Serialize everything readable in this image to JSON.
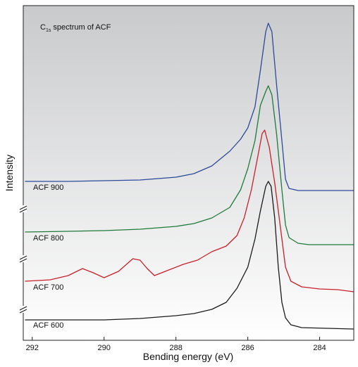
{
  "chart_data": {
    "type": "line",
    "title": {
      "base": "C",
      "subscript": "1s",
      "rest": " spectrum of ACF"
    },
    "x_label": "Bending energy (eV)",
    "y_label": "Intensity",
    "xlim": [
      292.25,
      283.05
    ],
    "xticks": [
      292,
      290,
      288,
      286,
      284
    ],
    "ylim": [
      0,
      476
    ],
    "series": [
      {
        "name": "ACF 900",
        "color": "#2c4a9a",
        "x": [
          292.2,
          291,
          290,
          289,
          288,
          287.5,
          287,
          286.5,
          286.2,
          286,
          285.8,
          285.65,
          285.5,
          285.43,
          285.33,
          285.2,
          285.05,
          284.95,
          284.85,
          284.6,
          283.05
        ],
        "values": [
          226,
          226,
          227,
          228,
          232,
          237,
          248,
          269,
          286,
          302,
          332,
          384,
          439,
          451,
          439,
          364,
          284,
          229,
          216,
          213,
          213
        ]
      },
      {
        "name": "ACF 800",
        "color": "#1f7a3a",
        "x": [
          292.2,
          291,
          290,
          289,
          288,
          287.5,
          287,
          286.5,
          286.2,
          286,
          285.8,
          285.65,
          285.5,
          285.43,
          285.33,
          285.2,
          285.05,
          284.95,
          284.85,
          284.6,
          284.3,
          283.05
        ],
        "values": [
          154,
          155,
          156,
          158,
          162,
          166,
          174,
          189,
          214,
          244,
          284,
          334,
          354,
          362,
          349,
          294,
          214,
          164,
          146,
          138,
          136,
          136
        ]
      },
      {
        "name": "ACF 700",
        "color": "#c8202a",
        "x": [
          292.2,
          291.5,
          291,
          290.6,
          290.3,
          290,
          289.6,
          289.2,
          289,
          288.8,
          288.6,
          288.2,
          287.8,
          287.4,
          287,
          286.6,
          286.3,
          286.1,
          285.9,
          285.75,
          285.6,
          285.53,
          285.4,
          285.25,
          285.1,
          284.95,
          284.8,
          284.5,
          284,
          283.5,
          283.05
        ],
        "values": [
          84,
          86,
          92,
          102,
          96,
          89,
          98,
          116,
          114,
          102,
          92,
          100,
          108,
          114,
          126,
          134,
          149,
          174,
          214,
          254,
          294,
          299,
          274,
          224,
          164,
          104,
          84,
          76,
          73,
          72,
          69
        ]
      },
      {
        "name": "ACF 600",
        "color": "#1a1a1a",
        "x": [
          292.2,
          291,
          290,
          289,
          288,
          287.5,
          287,
          286.6,
          286.3,
          286,
          285.8,
          285.65,
          285.5,
          285.43,
          285.35,
          285.25,
          285.15,
          285.05,
          284.95,
          284.8,
          284.5,
          283.05
        ],
        "values": [
          29,
          29,
          29,
          31,
          35,
          38,
          44,
          54,
          74,
          104,
          144,
          184,
          219,
          226,
          219,
          174,
          104,
          54,
          32,
          22,
          18,
          16
        ]
      }
    ]
  }
}
